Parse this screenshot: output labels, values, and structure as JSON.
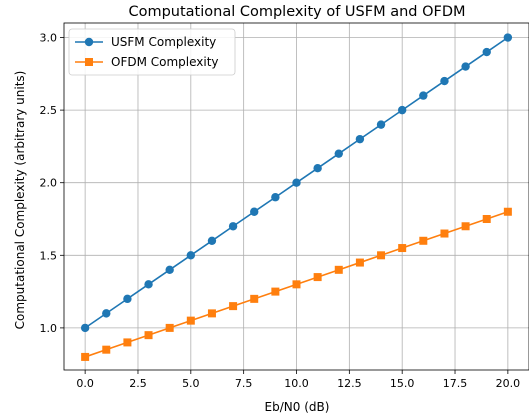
{
  "chart_data": {
    "type": "line",
    "title": "Computational Complexity of USFM and OFDM",
    "xlabel": "Eb/N0 (dB)",
    "ylabel": "Computational Complexity (arbitrary units)",
    "x": [
      0,
      1,
      2,
      3,
      4,
      5,
      6,
      7,
      8,
      9,
      10,
      11,
      12,
      13,
      14,
      15,
      16,
      17,
      18,
      19,
      20
    ],
    "xlim": [
      -1,
      21
    ],
    "ylim": [
      0.71,
      3.1
    ],
    "xticks": [
      0.0,
      2.5,
      5.0,
      7.5,
      10.0,
      12.5,
      15.0,
      17.5,
      20.0
    ],
    "xtick_labels": [
      "0.0",
      "2.5",
      "5.0",
      "7.5",
      "10.0",
      "12.5",
      "15.0",
      "17.5",
      "20.0"
    ],
    "yticks": [
      1.0,
      1.5,
      2.0,
      2.5,
      3.0
    ],
    "ytick_labels": [
      "1.0",
      "1.5",
      "2.0",
      "2.5",
      "3.0"
    ],
    "grid": true,
    "legend_position": "top-left",
    "series": [
      {
        "name": "USFM Complexity",
        "color": "#1f77b4",
        "marker": "circle",
        "values": [
          1.0,
          1.1,
          1.2,
          1.3,
          1.4,
          1.5,
          1.6,
          1.7,
          1.8,
          1.9,
          2.0,
          2.1,
          2.2,
          2.3,
          2.4,
          2.5,
          2.6,
          2.7,
          2.8,
          2.9,
          3.0
        ]
      },
      {
        "name": "OFDM Complexity",
        "color": "#ff7f0e",
        "marker": "square",
        "values": [
          0.8,
          0.85,
          0.9,
          0.95,
          1.0,
          1.05,
          1.1,
          1.15,
          1.2,
          1.25,
          1.3,
          1.35,
          1.4,
          1.45,
          1.5,
          1.55,
          1.6,
          1.65,
          1.7,
          1.75,
          1.8
        ]
      }
    ]
  }
}
